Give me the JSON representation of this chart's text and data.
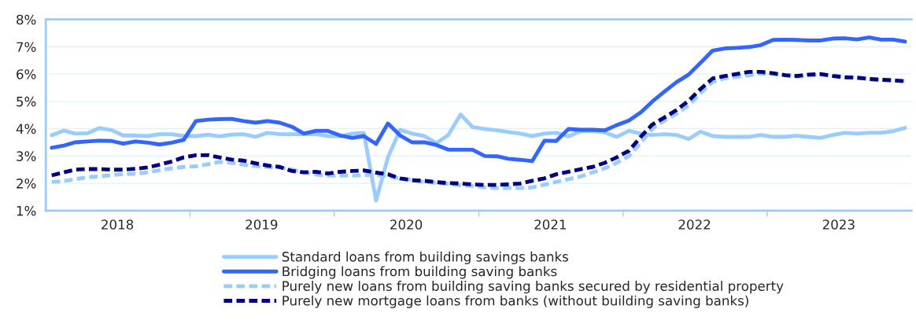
{
  "chart_data": {
    "type": "line",
    "x": [
      "2018-01-16",
      "2018-02-16",
      "2018-03-16",
      "2018-04-16",
      "2018-05-16",
      "2018-06-16",
      "2018-07-16",
      "2018-08-16",
      "2018-09-16",
      "2018-10-16",
      "2018-11-16",
      "2018-12-16",
      "2019-01-16",
      "2019-02-16",
      "2019-03-16",
      "2019-04-16",
      "2019-05-16",
      "2019-06-16",
      "2019-07-16",
      "2019-08-16",
      "2019-09-16",
      "2019-10-16",
      "2019-11-16",
      "2019-12-16",
      "2020-01-16",
      "2020-02-16",
      "2020-03-16",
      "2020-04-16",
      "2020-05-16",
      "2020-06-16",
      "2020-07-16",
      "2020-08-16",
      "2020-09-16",
      "2020-10-16",
      "2020-11-16",
      "2020-12-16",
      "2021-01-16",
      "2021-02-16",
      "2021-03-16",
      "2021-04-16",
      "2021-05-16",
      "2021-06-16",
      "2021-07-16",
      "2021-08-16",
      "2021-09-16",
      "2021-10-16",
      "2021-11-16",
      "2021-12-16",
      "2022-01-16",
      "2022-02-16",
      "2022-03-16",
      "2022-04-16",
      "2022-05-16",
      "2022-06-16",
      "2022-07-16",
      "2022-08-16",
      "2022-09-16",
      "2022-10-16",
      "2022-11-16",
      "2022-12-16",
      "2023-01-16",
      "2023-02-16",
      "2023-03-16",
      "2023-04-16",
      "2023-05-16",
      "2023-06-16",
      "2023-07-16",
      "2023-08-16",
      "2023-09-16",
      "2023-10-16",
      "2023-11-16",
      "2023-12-16"
    ],
    "series": [
      {
        "name": "Standard loans from building savings banks",
        "color": "#99ccff",
        "line_style": "solid",
        "values": [
          3.76,
          3.93,
          3.82,
          3.83,
          4.02,
          3.95,
          3.75,
          3.75,
          3.73,
          3.8,
          3.8,
          3.73,
          3.73,
          3.78,
          3.72,
          3.78,
          3.8,
          3.7,
          3.85,
          3.8,
          3.8,
          3.8,
          3.8,
          3.73,
          3.72,
          3.82,
          3.85,
          1.37,
          2.95,
          3.96,
          3.82,
          3.73,
          3.47,
          3.77,
          4.52,
          4.06,
          3.99,
          3.94,
          3.88,
          3.82,
          3.73,
          3.82,
          3.85,
          3.72,
          3.91,
          3.92,
          3.86,
          3.7,
          3.92,
          3.81,
          3.77,
          3.8,
          3.77,
          3.62,
          3.89,
          3.73,
          3.7,
          3.7,
          3.7,
          3.77,
          3.7,
          3.7,
          3.74,
          3.7,
          3.66,
          3.77,
          3.85,
          3.82,
          3.85,
          3.85,
          3.91,
          4.03
        ]
      },
      {
        "name": "Bridging loans from building saving banks",
        "color": "#3366ff",
        "line_style": "solid",
        "values": [
          3.3,
          3.38,
          3.5,
          3.53,
          3.56,
          3.55,
          3.45,
          3.53,
          3.49,
          3.42,
          3.49,
          3.59,
          4.28,
          4.33,
          4.35,
          4.36,
          4.28,
          4.22,
          4.28,
          4.22,
          4.07,
          3.82,
          3.92,
          3.92,
          3.75,
          3.66,
          3.73,
          3.44,
          4.19,
          3.75,
          3.5,
          3.5,
          3.4,
          3.23,
          3.23,
          3.23,
          3.0,
          2.99,
          2.9,
          2.86,
          2.81,
          3.56,
          3.55,
          3.99,
          3.96,
          3.96,
          3.94,
          4.13,
          4.3,
          4.61,
          4.99,
          5.36,
          5.7,
          5.98,
          6.41,
          6.86,
          6.94,
          6.96,
          6.99,
          7.06,
          7.25,
          7.26,
          7.25,
          7.23,
          7.23,
          7.3,
          7.31,
          7.27,
          7.34,
          7.26,
          7.26,
          7.19
        ]
      },
      {
        "name": "Purely new loans from building saving banks secured by residential property",
        "color": "#99ccff",
        "line_style": "dashed",
        "values": [
          2.05,
          2.08,
          2.15,
          2.22,
          2.25,
          2.3,
          2.33,
          2.35,
          2.4,
          2.48,
          2.55,
          2.6,
          2.62,
          2.7,
          2.78,
          2.75,
          2.68,
          2.63,
          2.6,
          2.58,
          2.5,
          2.4,
          2.32,
          2.28,
          2.28,
          2.28,
          2.3,
          2.3,
          2.25,
          2.18,
          2.12,
          2.05,
          2.02,
          1.98,
          1.93,
          1.9,
          1.85,
          1.83,
          1.83,
          1.83,
          1.85,
          1.95,
          2.05,
          2.15,
          2.25,
          2.4,
          2.55,
          2.75,
          3.0,
          3.5,
          4.0,
          4.3,
          4.55,
          4.85,
          5.3,
          5.72,
          5.85,
          5.9,
          5.95,
          6.02,
          6.0,
          5.95,
          5.9,
          5.95,
          5.98,
          5.95,
          5.9,
          5.87,
          5.82,
          5.8,
          5.77,
          5.74
        ]
      },
      {
        "name": "Purely new mortgage loans from banks (without building saving banks)",
        "color": "#000080",
        "line_style": "dashed",
        "values": [
          2.29,
          2.4,
          2.5,
          2.52,
          2.52,
          2.5,
          2.5,
          2.53,
          2.58,
          2.68,
          2.8,
          2.95,
          3.03,
          3.03,
          2.95,
          2.87,
          2.83,
          2.73,
          2.65,
          2.6,
          2.45,
          2.4,
          2.42,
          2.36,
          2.42,
          2.45,
          2.47,
          2.39,
          2.33,
          2.18,
          2.11,
          2.09,
          2.04,
          2.01,
          1.99,
          1.96,
          1.94,
          1.94,
          1.96,
          1.99,
          2.09,
          2.18,
          2.33,
          2.42,
          2.52,
          2.6,
          2.75,
          2.95,
          3.19,
          3.72,
          4.15,
          4.41,
          4.68,
          5.02,
          5.45,
          5.84,
          5.93,
          6.0,
          6.08,
          6.08,
          6.03,
          5.96,
          5.93,
          5.98,
          6.0,
          5.93,
          5.88,
          5.87,
          5.82,
          5.79,
          5.77,
          5.74
        ]
      }
    ],
    "xlim": [
      "2018-01-01",
      "2024-01-01"
    ],
    "xticks": [
      {
        "value": "2018-07-01",
        "label": "2018"
      },
      {
        "value": "2019-01-01",
        "label": null
      },
      {
        "value": "2019-07-01",
        "label": "2019"
      },
      {
        "value": "2020-01-01",
        "label": null
      },
      {
        "value": "2020-07-01",
        "label": "2020"
      },
      {
        "value": "2021-01-01",
        "label": null
      },
      {
        "value": "2021-07-01",
        "label": "2021"
      },
      {
        "value": "2022-01-01",
        "label": null
      },
      {
        "value": "2022-07-01",
        "label": "2022"
      },
      {
        "value": "2023-01-01",
        "label": null
      },
      {
        "value": "2023-07-01",
        "label": "2023"
      }
    ],
    "ylim": [
      1,
      8
    ],
    "yticks": [
      {
        "value": 1,
        "label": "1%"
      },
      {
        "value": 2,
        "label": "2%"
      },
      {
        "value": 3,
        "label": "3%"
      },
      {
        "value": 4,
        "label": "4%"
      },
      {
        "value": 5,
        "label": "5%"
      },
      {
        "value": 6,
        "label": "6%"
      },
      {
        "value": 7,
        "label": "7%"
      },
      {
        "value": 8,
        "label": "8%"
      }
    ],
    "grid": "y",
    "legend": "bottom",
    "marker": "none"
  }
}
